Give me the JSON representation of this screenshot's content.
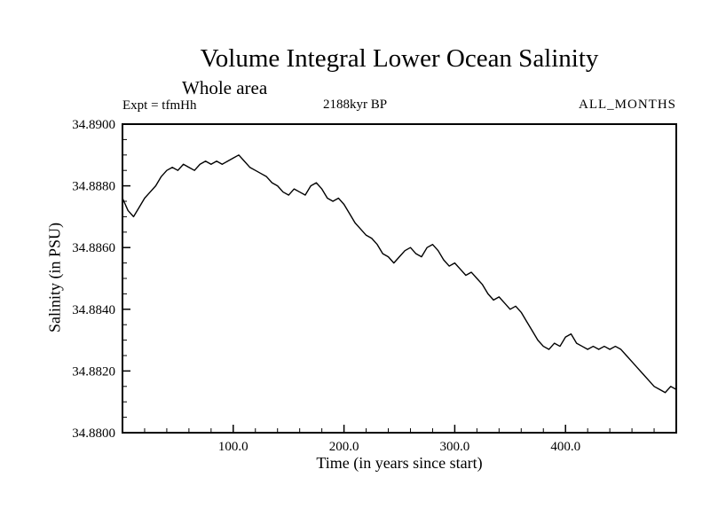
{
  "header": {
    "title": "Volume Integral Lower Ocean Salinity",
    "subtitle": "Whole area",
    "expt": "Expt = tfmHh",
    "time_bp": "2188kyr BP",
    "months": "ALL_MONTHS"
  },
  "chart_data": {
    "type": "line",
    "title": "Volume Integral Lower Ocean Salinity",
    "subtitle": "Whole area",
    "annotations": [
      "Expt = tfmHh",
      "2188kyr BP",
      "ALL_MONTHS"
    ],
    "xlabel": "Time (in years since start)",
    "ylabel": "Salinity (in PSU)",
    "xlim": [
      0,
      500
    ],
    "ylim": [
      34.88,
      34.89
    ],
    "xticks": [
      100,
      200,
      300,
      400
    ],
    "xtick_labels": [
      "100.0",
      "200.0",
      "300.0",
      "400.0"
    ],
    "yticks": [
      34.88,
      34.882,
      34.884,
      34.886,
      34.888,
      34.89
    ],
    "ytick_labels": [
      "34.8800",
      "34.8820",
      "34.8840",
      "34.8860",
      "34.8880",
      "34.8900"
    ],
    "grid": false,
    "legend": false,
    "line_color": "#000000",
    "x": [
      0,
      5,
      10,
      15,
      20,
      25,
      30,
      35,
      40,
      45,
      50,
      55,
      60,
      65,
      70,
      75,
      80,
      85,
      90,
      95,
      100,
      105,
      110,
      115,
      120,
      125,
      130,
      135,
      140,
      145,
      150,
      155,
      160,
      165,
      170,
      175,
      180,
      185,
      190,
      195,
      200,
      205,
      210,
      215,
      220,
      225,
      230,
      235,
      240,
      245,
      250,
      255,
      260,
      265,
      270,
      275,
      280,
      285,
      290,
      295,
      300,
      305,
      310,
      315,
      320,
      325,
      330,
      335,
      340,
      345,
      350,
      355,
      360,
      365,
      370,
      375,
      380,
      385,
      390,
      395,
      400,
      405,
      410,
      415,
      420,
      425,
      430,
      435,
      440,
      445,
      450,
      455,
      460,
      465,
      470,
      475,
      480,
      485,
      490,
      495,
      500
    ],
    "y": [
      34.8876,
      34.8872,
      34.887,
      34.8873,
      34.8876,
      34.8878,
      34.888,
      34.8883,
      34.8885,
      34.8886,
      34.8885,
      34.8887,
      34.8886,
      34.8885,
      34.8887,
      34.8888,
      34.8887,
      34.8888,
      34.8887,
      34.8888,
      34.8889,
      34.889,
      34.8888,
      34.8886,
      34.8885,
      34.8884,
      34.8883,
      34.8881,
      34.888,
      34.8878,
      34.8877,
      34.8879,
      34.8878,
      34.8877,
      34.888,
      34.8881,
      34.8879,
      34.8876,
      34.8875,
      34.8876,
      34.8874,
      34.8871,
      34.8868,
      34.8866,
      34.8864,
      34.8863,
      34.8861,
      34.8858,
      34.8857,
      34.8855,
      34.8857,
      34.8859,
      34.886,
      34.8858,
      34.8857,
      34.886,
      34.8861,
      34.8859,
      34.8856,
      34.8854,
      34.8855,
      34.8853,
      34.8851,
      34.8852,
      34.885,
      34.8848,
      34.8845,
      34.8843,
      34.8844,
      34.8842,
      34.884,
      34.8841,
      34.8839,
      34.8836,
      34.8833,
      34.883,
      34.8828,
      34.8827,
      34.8829,
      34.8828,
      34.8831,
      34.8832,
      34.8829,
      34.8828,
      34.8827,
      34.8828,
      34.8827,
      34.8828,
      34.8827,
      34.8828,
      34.8827,
      34.8825,
      34.8823,
      34.8821,
      34.8819,
      34.8817,
      34.8815,
      34.8814,
      34.8813,
      34.8815,
      34.8814
    ]
  }
}
